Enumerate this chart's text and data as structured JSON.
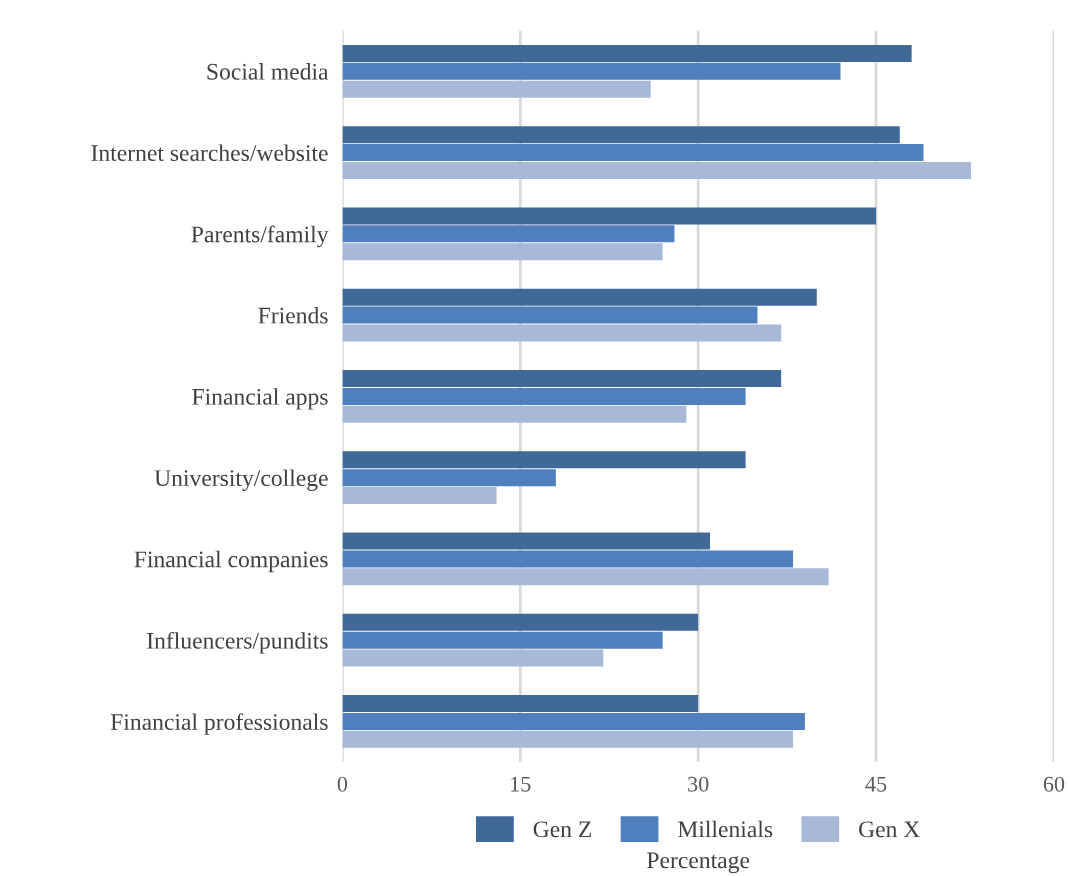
{
  "chart_data": {
    "type": "bar",
    "orientation": "horizontal",
    "xlabel": "Percentage",
    "categories": [
      "Social media",
      "Internet searches/website",
      "Parents/family",
      "Friends",
      "Financial apps",
      "University/college",
      "Financial companies",
      "Influencers/pundits",
      "Financial professionals"
    ],
    "series": [
      {
        "name": "Gen Z",
        "color": "#416998",
        "values": [
          48,
          47,
          45,
          40,
          37,
          34,
          31,
          30,
          30
        ]
      },
      {
        "name": "Millenials",
        "color": "#4f80bd",
        "values": [
          42,
          49,
          28,
          35,
          34,
          18,
          38,
          27,
          39
        ]
      },
      {
        "name": "Gen X",
        "color": "#a8b9d8",
        "values": [
          26,
          53,
          27,
          37,
          29,
          13,
          41,
          22,
          38
        ]
      }
    ],
    "xlim": [
      0,
      60
    ],
    "xticks": [
      0,
      15,
      30,
      45,
      60
    ],
    "grid": "x",
    "legend": "bottom"
  }
}
